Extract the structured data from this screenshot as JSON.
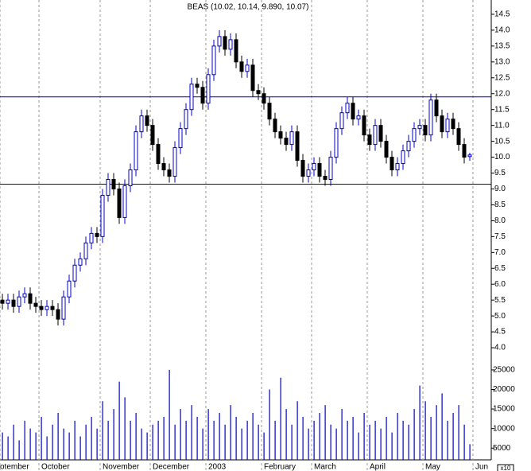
{
  "chart_data": {
    "type": "candlestick",
    "title": "BEAS (10.02, 10.14, 9.890, 10.07)",
    "categories": [
      "otember",
      null,
      null,
      null,
      null,
      null,
      null,
      "October",
      null,
      null,
      null,
      null,
      null,
      null,
      null,
      null,
      null,
      null,
      "November",
      null,
      null,
      null,
      null,
      null,
      null,
      null,
      null,
      "December",
      null,
      null,
      null,
      null,
      null,
      null,
      null,
      null,
      null,
      "2003",
      null,
      null,
      null,
      null,
      null,
      null,
      null,
      null,
      null,
      "February",
      null,
      null,
      null,
      null,
      null,
      null,
      null,
      null,
      "March",
      null,
      null,
      null,
      null,
      null,
      null,
      null,
      null,
      null,
      "April",
      null,
      null,
      null,
      null,
      null,
      null,
      null,
      null,
      null,
      "May",
      null,
      null,
      null,
      null,
      null,
      null,
      null,
      null,
      "Jun",
      null
    ],
    "open": [
      5.5,
      5.4,
      5.5,
      5.3,
      5.6,
      5.7,
      5.4,
      5.3,
      5.2,
      5.3,
      5.2,
      4.9,
      5.6,
      6.1,
      6.6,
      6.8,
      7.3,
      7.6,
      7.5,
      8.8,
      9.3,
      9.0,
      8.1,
      9.1,
      9.6,
      10.8,
      11.3,
      11.0,
      10.4,
      9.8,
      9.6,
      9.4,
      10.3,
      10.9,
      11.5,
      12.3,
      12.2,
      11.7,
      12.6,
      13.5,
      13.8,
      13.4,
      13.7,
      13.0,
      12.7,
      12.9,
      12.1,
      12.0,
      11.7,
      11.2,
      10.8,
      10.6,
      10.4,
      10.8,
      9.9,
      9.4,
      9.6,
      9.8,
      9.4,
      9.3,
      10.0,
      10.9,
      11.4,
      11.7,
      11.2,
      11.3,
      10.7,
      10.4,
      11.0,
      10.5,
      10.0,
      9.6,
      9.8,
      10.2,
      10.5,
      10.9,
      11.0,
      10.7,
      11.8,
      11.3,
      10.8,
      11.2,
      10.9,
      10.4,
      10.02,
      null,
      null
    ],
    "high": [
      5.7,
      5.7,
      5.7,
      5.8,
      5.9,
      5.9,
      5.6,
      5.5,
      5.5,
      5.5,
      5.4,
      5.8,
      6.3,
      6.8,
      7.0,
      7.5,
      7.8,
      7.8,
      9.0,
      9.5,
      9.5,
      9.2,
      9.3,
      9.8,
      11.0,
      11.5,
      11.5,
      11.2,
      10.6,
      10.0,
      9.8,
      10.5,
      11.1,
      11.7,
      12.5,
      12.5,
      12.4,
      12.8,
      13.7,
      14.0,
      14.0,
      13.9,
      13.9,
      13.2,
      13.1,
      13.1,
      12.3,
      12.2,
      11.9,
      11.4,
      11.0,
      10.8,
      11.0,
      11.0,
      10.1,
      9.8,
      10.0,
      10.0,
      9.6,
      10.2,
      11.1,
      11.6,
      11.9,
      11.9,
      11.5,
      11.5,
      10.9,
      11.2,
      11.2,
      10.7,
      10.2,
      10.0,
      10.4,
      10.7,
      11.1,
      11.2,
      11.2,
      12.0,
      12.0,
      11.5,
      11.4,
      11.4,
      11.1,
      10.6,
      10.14,
      null,
      null
    ],
    "low": [
      5.2,
      5.2,
      5.1,
      5.1,
      5.4,
      5.2,
      5.1,
      5.0,
      5.0,
      5.0,
      4.7,
      4.7,
      5.4,
      5.9,
      6.4,
      6.6,
      7.1,
      7.3,
      7.3,
      8.6,
      8.8,
      7.9,
      7.9,
      8.9,
      9.4,
      10.6,
      10.8,
      10.2,
      9.6,
      9.4,
      9.2,
      9.2,
      10.1,
      10.7,
      11.3,
      12.0,
      11.5,
      11.5,
      12.4,
      13.3,
      13.2,
      13.2,
      12.8,
      12.5,
      12.5,
      11.9,
      11.8,
      11.5,
      11.0,
      10.6,
      10.4,
      10.2,
      10.2,
      9.7,
      9.2,
      9.2,
      9.4,
      9.2,
      9.1,
      9.1,
      9.8,
      10.7,
      11.2,
      11.0,
      11.0,
      10.5,
      10.2,
      10.2,
      10.3,
      9.8,
      9.4,
      9.4,
      9.6,
      10.0,
      10.3,
      10.7,
      10.5,
      10.5,
      11.1,
      10.6,
      10.6,
      10.7,
      10.2,
      9.8,
      9.89,
      null,
      null
    ],
    "close": [
      5.4,
      5.5,
      5.3,
      5.6,
      5.7,
      5.4,
      5.3,
      5.2,
      5.3,
      5.2,
      4.9,
      5.6,
      6.1,
      6.6,
      6.8,
      7.3,
      7.6,
      7.5,
      8.8,
      9.3,
      9.0,
      8.1,
      9.1,
      9.6,
      10.8,
      11.3,
      11.0,
      10.4,
      9.8,
      9.6,
      9.4,
      10.3,
      10.9,
      11.5,
      12.3,
      12.2,
      11.7,
      12.6,
      13.5,
      13.8,
      13.4,
      13.7,
      13.0,
      12.7,
      12.9,
      12.1,
      12.0,
      11.7,
      11.2,
      10.8,
      10.6,
      10.4,
      10.8,
      9.9,
      9.4,
      9.6,
      9.8,
      9.4,
      9.3,
      10.0,
      10.9,
      11.4,
      11.7,
      11.2,
      11.3,
      10.7,
      10.4,
      11.0,
      10.5,
      10.0,
      9.6,
      9.8,
      10.2,
      10.5,
      10.9,
      11.0,
      10.7,
      11.8,
      11.3,
      10.8,
      11.2,
      10.9,
      10.4,
      10.0,
      10.07,
      null,
      null
    ],
    "volume": [
      9000,
      8000,
      11000,
      7000,
      12000,
      10000,
      9000,
      13000,
      8000,
      11000,
      14000,
      10000,
      9000,
      12000,
      8000,
      11000,
      13000,
      10000,
      17000,
      12000,
      15000,
      22000,
      18000,
      12000,
      14000,
      10000,
      9000,
      11000,
      12000,
      13000,
      25000,
      11000,
      15000,
      12000,
      16000,
      13000,
      10000,
      15000,
      12000,
      14000,
      11000,
      16000,
      13000,
      10000,
      12000,
      14000,
      11000,
      9000,
      20000,
      12000,
      23000,
      15000,
      11000,
      17000,
      13000,
      10000,
      12000,
      14000,
      16000,
      11000,
      10000,
      15000,
      12000,
      13000,
      9000,
      14000,
      11000,
      12000,
      10000,
      13000,
      9000,
      14000,
      12000,
      11000,
      15000,
      21000,
      17000,
      13000,
      16000,
      19000,
      12000,
      14000,
      16000,
      11000,
      6000,
      null,
      null
    ],
    "up_color": "#0000cc",
    "down_color": "#000000",
    "volume_color": "#0000cc",
    "line_color": "#0000cc",
    "horizontal_lines": [
      11.9,
      9.15
    ],
    "ylim": [
      3.55,
      14.95
    ],
    "yticks": [
      {
        "value": 4,
        "label": "4.0"
      },
      4.5,
      {
        "value": 5,
        "label": "5.0"
      },
      5.5,
      {
        "value": 6,
        "label": "6.0"
      },
      6.5,
      {
        "value": 7,
        "label": "7.0"
      },
      7.5,
      {
        "value": 8,
        "label": "8.0"
      },
      8.5,
      {
        "value": 9,
        "label": "9.0"
      },
      9.5,
      {
        "value": 10,
        "label": "10.0"
      },
      10.5,
      {
        "value": 11,
        "label": "11.0"
      },
      11.5,
      {
        "value": 12,
        "label": "12.0"
      },
      12.5,
      {
        "value": 13,
        "label": "13.0"
      },
      13.5,
      {
        "value": 14,
        "label": "14.0"
      },
      14.5
    ],
    "y2lim": [
      2000,
      26000
    ],
    "y2ticks": [
      5000,
      10000,
      15000,
      20000,
      25000
    ],
    "volume_multiplier_label": "x10"
  }
}
